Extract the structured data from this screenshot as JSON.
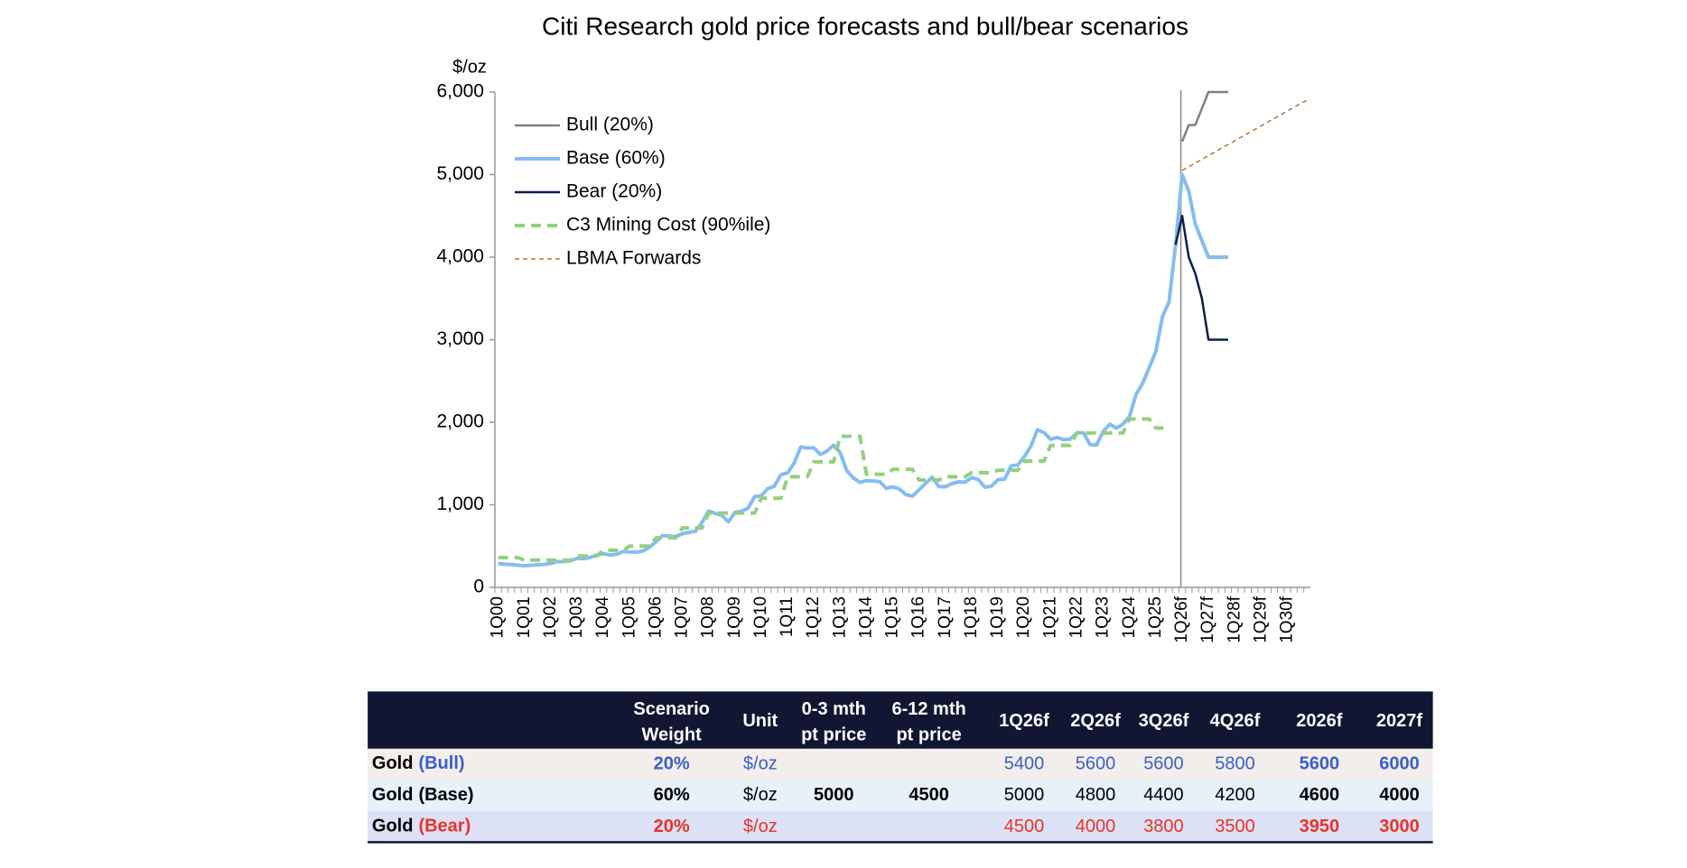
{
  "chart_data": {
    "type": "line",
    "title": "Citi Research gold price forecasts and bull/bear scenarios",
    "y_label": "$/oz",
    "categories": [
      "1Q00",
      null,
      null,
      null,
      "1Q01",
      null,
      null,
      null,
      "1Q02",
      null,
      null,
      null,
      "1Q03",
      null,
      null,
      null,
      "1Q04",
      null,
      null,
      null,
      "1Q05",
      null,
      null,
      null,
      "1Q06",
      null,
      null,
      null,
      "1Q07",
      null,
      null,
      null,
      "1Q08",
      null,
      null,
      null,
      "1Q09",
      null,
      null,
      null,
      "1Q10",
      null,
      null,
      null,
      "1Q11",
      null,
      null,
      null,
      "1Q12",
      null,
      null,
      null,
      "1Q13",
      null,
      null,
      null,
      "1Q14",
      null,
      null,
      null,
      "1Q15",
      null,
      null,
      null,
      "1Q16",
      null,
      null,
      null,
      "1Q17",
      null,
      null,
      null,
      "1Q18",
      null,
      null,
      null,
      "1Q19",
      null,
      null,
      null,
      "1Q20",
      null,
      null,
      null,
      "1Q21",
      null,
      null,
      null,
      "1Q22",
      null,
      null,
      null,
      "1Q23",
      null,
      null,
      null,
      "1Q24",
      null,
      null,
      null,
      "1Q25",
      null,
      null,
      null,
      "1Q26f",
      null,
      null,
      null,
      "1Q27f",
      null,
      null,
      null,
      "1Q28f",
      null,
      null,
      null,
      "1Q29f",
      null,
      null,
      null,
      "1Q30f",
      null,
      null,
      null
    ],
    "ylim": [
      0,
      6000
    ],
    "yticks": [
      0,
      {
        "value": 1000,
        "label": "1,000"
      },
      {
        "value": 2000,
        "label": "2,000"
      },
      {
        "value": 3000,
        "label": "3,000"
      },
      {
        "value": 4000,
        "label": "4,000"
      },
      {
        "value": 5000,
        "label": "5,000"
      },
      {
        "value": 6000,
        "label": "6,000"
      }
    ],
    "grid": false,
    "legend": "top-left",
    "series": [
      {
        "name": "Bull (20%)",
        "color": "#808080",
        "line_width": 2.5,
        "dashed": false,
        "values": [
          null,
          null,
          null,
          null,
          null,
          null,
          null,
          null,
          null,
          null,
          null,
          null,
          null,
          null,
          null,
          null,
          null,
          null,
          null,
          null,
          null,
          null,
          null,
          null,
          null,
          null,
          null,
          null,
          null,
          null,
          null,
          null,
          null,
          null,
          null,
          null,
          null,
          null,
          null,
          null,
          null,
          null,
          null,
          null,
          null,
          null,
          null,
          null,
          null,
          null,
          null,
          null,
          null,
          null,
          null,
          null,
          null,
          null,
          null,
          null,
          null,
          null,
          null,
          null,
          null,
          null,
          null,
          null,
          null,
          null,
          null,
          null,
          null,
          null,
          null,
          null,
          null,
          null,
          null,
          null,
          null,
          null,
          null,
          null,
          null,
          null,
          null,
          null,
          null,
          null,
          null,
          null,
          null,
          null,
          null,
          null,
          null,
          null,
          null,
          null,
          null,
          null,
          null,
          null,
          5400,
          5600,
          5600,
          5800,
          6000,
          6000,
          6000,
          6000,
          null,
          null,
          null,
          null,
          null,
          null,
          null,
          null,
          null,
          null,
          null,
          null
        ]
      },
      {
        "name": "Base (60%)",
        "color": "#86bdf0",
        "line_width": 4,
        "dashed": false,
        "values": [
          290,
          280,
          277,
          268,
          263,
          268,
          274,
          279,
          290,
          313,
          314,
          323,
          352,
          347,
          363,
          392,
          408,
          393,
          401,
          434,
          427,
          427,
          440,
          485,
          554,
          628,
          622,
          614,
          650,
          667,
          680,
          788,
          925,
          896,
          872,
          795,
          908,
          922,
          960,
          1100,
          1109,
          1197,
          1227,
          1367,
          1386,
          1506,
          1702,
          1688,
          1691,
          1609,
          1652,
          1722,
          1632,
          1415,
          1326,
          1272,
          1293,
          1288,
          1282,
          1201,
          1218,
          1192,
          1124,
          1105,
          1183,
          1260,
          1335,
          1222,
          1219,
          1257,
          1278,
          1275,
          1329,
          1306,
          1213,
          1226,
          1304,
          1310,
          1472,
          1483,
          1583,
          1711,
          1909,
          1875,
          1794,
          1816,
          1789,
          1795,
          1874,
          1871,
          1729,
          1726,
          1890,
          1976,
          1928,
          1976,
          2072,
          2338,
          2474,
          2663,
          2860,
          3280,
          3457,
          4150,
          5000,
          4800,
          4400,
          4200,
          4000,
          4000,
          4000,
          4000,
          null,
          null,
          null,
          null,
          null,
          null,
          null,
          null,
          null,
          null,
          null,
          null
        ]
      },
      {
        "name": "Bear (20%)",
        "color": "#0d1f4f",
        "line_width": 2.5,
        "dashed": false,
        "values": [
          null,
          null,
          null,
          null,
          null,
          null,
          null,
          null,
          null,
          null,
          null,
          null,
          null,
          null,
          null,
          null,
          null,
          null,
          null,
          null,
          null,
          null,
          null,
          null,
          null,
          null,
          null,
          null,
          null,
          null,
          null,
          null,
          null,
          null,
          null,
          null,
          null,
          null,
          null,
          null,
          null,
          null,
          null,
          null,
          null,
          null,
          null,
          null,
          null,
          null,
          null,
          null,
          null,
          null,
          null,
          null,
          null,
          null,
          null,
          null,
          null,
          null,
          null,
          null,
          null,
          null,
          null,
          null,
          null,
          null,
          null,
          null,
          null,
          null,
          null,
          null,
          null,
          null,
          null,
          null,
          null,
          null,
          null,
          null,
          null,
          null,
          null,
          null,
          null,
          null,
          null,
          null,
          null,
          null,
          null,
          null,
          null,
          null,
          null,
          null,
          null,
          null,
          null,
          4150,
          4500,
          4000,
          3800,
          3500,
          3000,
          3000,
          3000,
          3000,
          null,
          null,
          null,
          null,
          null,
          null,
          null,
          null,
          null,
          null,
          null,
          null
        ]
      },
      {
        "name": "C3 Mining Cost (90%ile)",
        "color": "#92d07f",
        "line_width": 4,
        "dashed": true,
        "values": [
          360,
          360,
          360,
          360,
          330,
          330,
          330,
          330,
          330,
          330,
          330,
          330,
          380,
          380,
          380,
          380,
          450,
          450,
          450,
          450,
          500,
          500,
          500,
          500,
          600,
          600,
          600,
          600,
          720,
          720,
          720,
          720,
          900,
          900,
          900,
          900,
          900,
          900,
          900,
          900,
          1080,
          1080,
          1080,
          1080,
          1340,
          1340,
          1340,
          1340,
          1520,
          1520,
          1520,
          1520,
          1830,
          1830,
          1830,
          1830,
          1370,
          1370,
          1370,
          1370,
          1430,
          1430,
          1430,
          1430,
          1300,
          1300,
          1300,
          1300,
          1340,
          1340,
          1340,
          1340,
          1390,
          1390,
          1390,
          1390,
          1420,
          1420,
          1420,
          1420,
          1530,
          1530,
          1530,
          1530,
          1720,
          1720,
          1720,
          1720,
          1870,
          1870,
          1870,
          1870,
          1870,
          1870,
          1870,
          1870,
          2040,
          2040,
          2040,
          2040,
          1930,
          1930,
          1930,
          null,
          null,
          null,
          null,
          null,
          null,
          null,
          null,
          null,
          null,
          null,
          null,
          null,
          null,
          null,
          null,
          null,
          null,
          null,
          null,
          null
        ]
      },
      {
        "name": "LBMA Forwards",
        "color": "#b5703a",
        "line_width": 1.5,
        "dashed": true,
        "values": [
          null,
          null,
          null,
          null,
          null,
          null,
          null,
          null,
          null,
          null,
          null,
          null,
          null,
          null,
          null,
          null,
          null,
          null,
          null,
          null,
          null,
          null,
          null,
          null,
          null,
          null,
          null,
          null,
          null,
          null,
          null,
          null,
          null,
          null,
          null,
          null,
          null,
          null,
          null,
          null,
          null,
          null,
          null,
          null,
          null,
          null,
          null,
          null,
          null,
          null,
          null,
          null,
          null,
          null,
          null,
          null,
          null,
          null,
          null,
          null,
          null,
          null,
          null,
          null,
          null,
          null,
          null,
          null,
          null,
          null,
          null,
          null,
          null,
          null,
          null,
          null,
          null,
          null,
          null,
          null,
          null,
          null,
          null,
          null,
          null,
          null,
          null,
          null,
          null,
          null,
          null,
          null,
          null,
          null,
          null,
          null,
          null,
          null,
          null,
          null,
          null,
          null,
          null,
          null,
          5050,
          5095,
          5140,
          5185,
          5230,
          5275,
          5320,
          5365,
          5410,
          5455,
          5500,
          5545,
          5590,
          5635,
          5680,
          5725,
          5770,
          5815,
          5860,
          5900
        ]
      }
    ]
  },
  "table": {
    "header": [
      [
        "Scenario",
        "Weight"
      ],
      [
        "Unit"
      ],
      [
        "0-3 mth",
        "pt price"
      ],
      [
        "6-12 mth",
        "pt price"
      ],
      [
        "1Q26f"
      ],
      [
        "2Q26f"
      ],
      [
        "3Q26f"
      ],
      [
        "4Q26f"
      ],
      [
        "2026f"
      ],
      [
        "2027f"
      ]
    ],
    "rows": [
      {
        "name": "Gold",
        "scenario": "(Bull)",
        "color": "#3a5fcd",
        "background": "#f3eeec",
        "cells": [
          "20%",
          "$/oz",
          null,
          null,
          5400,
          5600,
          5600,
          5800,
          5600,
          6000
        ]
      },
      {
        "name": "Gold",
        "scenario": "(Base)",
        "color": "#000000",
        "background": "#e6f1fa",
        "cells": [
          "60%",
          "$/oz",
          5000,
          4500,
          5000,
          4800,
          4400,
          4200,
          4600,
          4000
        ]
      },
      {
        "name": "Gold",
        "scenario": "(Bear)",
        "color": "#e8342a",
        "background": "#dde1f5",
        "cells": [
          "20%",
          "$/oz",
          null,
          null,
          4500,
          4000,
          3800,
          3500,
          3950,
          3000
        ]
      }
    ]
  }
}
